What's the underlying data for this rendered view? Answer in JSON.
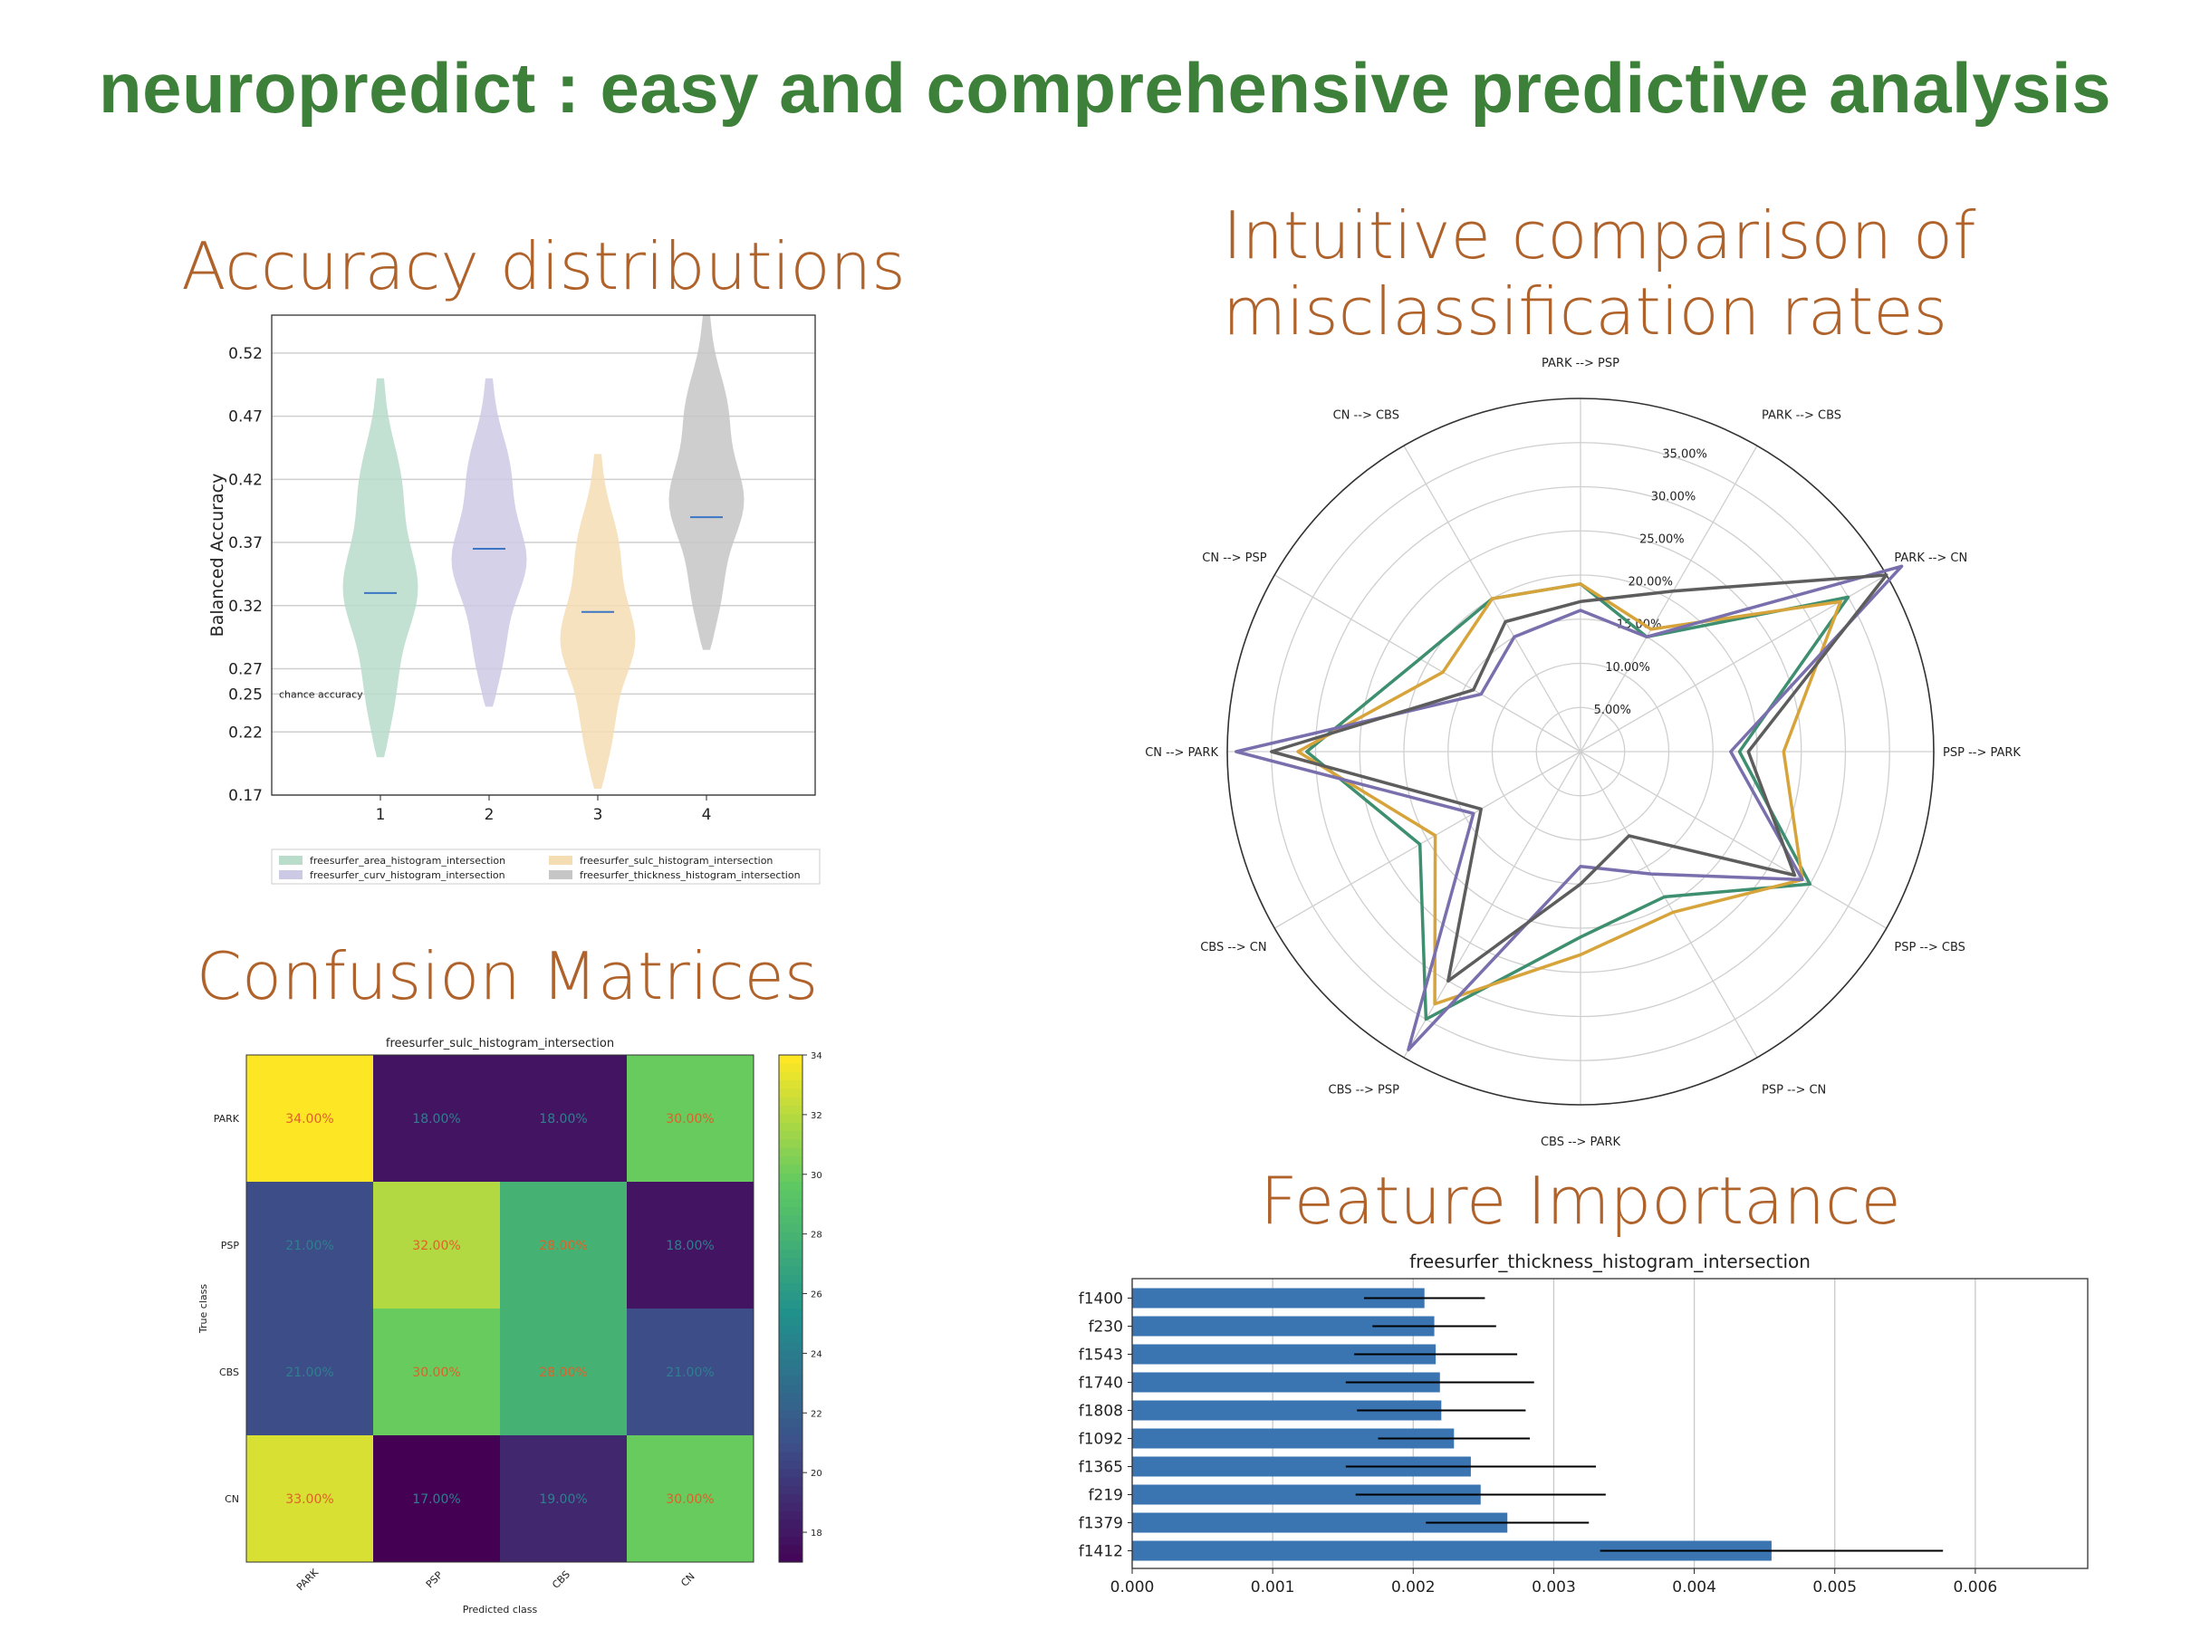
{
  "title": "neuropredict : easy and comprehensive predictive analysis",
  "sections": {
    "accuracy": "Accuracy distributions",
    "radar_line1": "Intuitive comparison of",
    "radar_line2": "misclassification rates",
    "confusion": "Confusion Matrices",
    "importance": "Feature Importance"
  },
  "colors": {
    "title": "#3d8039",
    "section": "#b0622b",
    "median": "#3b76c4",
    "bar": "#3a74b1"
  },
  "chart_data": [
    {
      "type": "violin",
      "ylabel": "Balanced Accuracy",
      "yticks": [
        0.17,
        0.22,
        0.25,
        0.27,
        0.32,
        0.37,
        0.42,
        0.47,
        0.52
      ],
      "ylim": [
        0.17,
        0.55
      ],
      "categories": [
        "1",
        "2",
        "3",
        "4"
      ],
      "chance_label": "chance accuracy",
      "chance_value": 0.25,
      "series": [
        {
          "name": "freesurfer_area_histogram_intersection",
          "color": "#b9dccb",
          "min": 0.2,
          "max": 0.5,
          "median": 0.33
        },
        {
          "name": "freesurfer_curv_histogram_intersection",
          "color": "#ccc9e4",
          "min": 0.24,
          "max": 0.5,
          "median": 0.365
        },
        {
          "name": "freesurfer_sulc_histogram_intersection",
          "color": "#f5ddb3",
          "min": 0.175,
          "max": 0.44,
          "median": 0.315
        },
        {
          "name": "freesurfer_thickness_histogram_intersection",
          "color": "#c6c6c6",
          "min": 0.285,
          "max": 0.55,
          "median": 0.39
        }
      ]
    },
    {
      "type": "radar",
      "axes": [
        "PARK --> PSP",
        "PARK --> CBS",
        "PARK --> CN",
        "PSP --> PARK",
        "PSP --> CBS",
        "PSP --> CN",
        "CBS --> PARK",
        "CBS --> PSP",
        "CBS --> CN",
        "CN --> PARK",
        "CN --> PSP",
        "CN --> CBS"
      ],
      "radial_ticks": [
        "5.00%",
        "10.00%",
        "15.00%",
        "20.00%",
        "25.00%",
        "30.00%",
        "35.00%"
      ],
      "rmax": 40,
      "series": [
        {
          "color": "#3d8f6f",
          "values": [
            19,
            15,
            35,
            18,
            30,
            19,
            21,
            35,
            21,
            31,
            21,
            20
          ]
        },
        {
          "color": "#d6a43a",
          "values": [
            19,
            16,
            34,
            23,
            29,
            21,
            23,
            33,
            19,
            32,
            18,
            20
          ]
        },
        {
          "color": "#7a6fad",
          "values": [
            16,
            15,
            42,
            17,
            29,
            16,
            13,
            39,
            14,
            39,
            13,
            15
          ]
        },
        {
          "color": "#5d5d5d",
          "values": [
            17,
            21,
            40,
            19,
            28,
            11,
            15,
            30,
            13,
            35,
            14,
            17
          ]
        }
      ]
    },
    {
      "type": "heatmap",
      "title": "freesurfer_sulc_histogram_intersection",
      "ylabel": "True class",
      "xlabel": "Predicted class",
      "rows": [
        "PARK",
        "PSP",
        "CBS",
        "CN"
      ],
      "cols": [
        "PARK",
        "PSP",
        "CBS",
        "CN"
      ],
      "values": [
        [
          34,
          18,
          18,
          30
        ],
        [
          21,
          32,
          28,
          18
        ],
        [
          21,
          30,
          28,
          21
        ],
        [
          33,
          17,
          19,
          30
        ]
      ],
      "cell_labels": [
        [
          "34.00%",
          "18.00%",
          "18.00%",
          "30.00%"
        ],
        [
          "21.00%",
          "32.00%",
          "28.00%",
          "18.00%"
        ],
        [
          "21.00%",
          "30.00%",
          "28.00%",
          "21.00%"
        ],
        [
          "33.00%",
          "17.00%",
          "19.00%",
          "30.00%"
        ]
      ],
      "colorbar_ticks": [
        18,
        20,
        22,
        24,
        26,
        28,
        30,
        32,
        34
      ],
      "vmin": 17,
      "vmax": 34
    },
    {
      "type": "bar",
      "orientation": "horizontal",
      "title": "freesurfer_thickness_histogram_intersection",
      "categories": [
        "f1400",
        "f230",
        "f1543",
        "f1740",
        "f1808",
        "f1092",
        "f1365",
        "f219",
        "f1379",
        "f1412"
      ],
      "values": [
        0.00208,
        0.00215,
        0.00216,
        0.00219,
        0.0022,
        0.00229,
        0.00241,
        0.00248,
        0.00267,
        0.00455
      ],
      "errors": [
        0.00043,
        0.00044,
        0.00058,
        0.00067,
        0.0006,
        0.00054,
        0.00089,
        0.00089,
        0.00058,
        0.00122
      ],
      "xticks": [
        "0.000",
        "0.001",
        "0.002",
        "0.003",
        "0.004",
        "0.005",
        "0.006"
      ],
      "xlim": [
        0,
        0.0068
      ]
    }
  ]
}
